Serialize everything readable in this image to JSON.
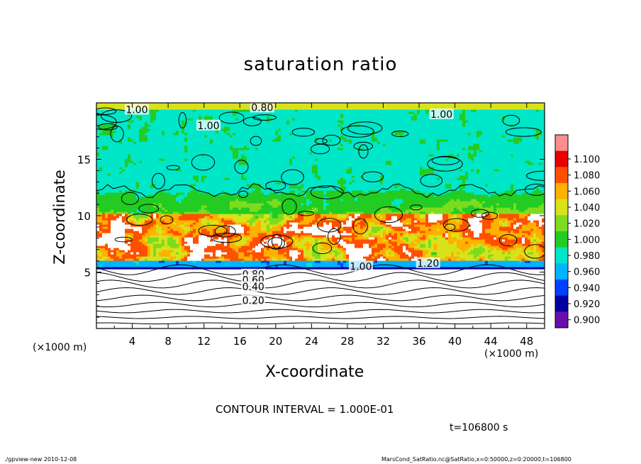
{
  "chart_data": {
    "type": "heatmap",
    "title": "saturation ratio",
    "xlabel": "X-coordinate",
    "ylabel": "Z-coordinate",
    "x_unit": "(×1000 m)",
    "y_unit": "(×1000 m)",
    "xlim": [
      0,
      50
    ],
    "ylim": [
      0,
      20
    ],
    "x_ticks": [
      4,
      8,
      12,
      16,
      20,
      24,
      28,
      32,
      36,
      40,
      44,
      48
    ],
    "y_ticks": [
      5,
      10,
      15
    ],
    "colorbar": {
      "levels": [
        0.9,
        0.92,
        0.94,
        0.96,
        0.98,
        1.0,
        1.02,
        1.04,
        1.06,
        1.08,
        1.1
      ],
      "labels": [
        "0.900",
        "0.920",
        "0.940",
        "0.960",
        "0.980",
        "1.000",
        "1.020",
        "1.040",
        "1.060",
        "1.080",
        "1.100"
      ],
      "colors": [
        "#6a0dad",
        "#0000a0",
        "#0040ff",
        "#00b4ff",
        "#00e6c8",
        "#22cc22",
        "#7ddc1f",
        "#d8e21a",
        "#ffb000",
        "#ff5000",
        "#e80000",
        "#ff8c8c"
      ]
    },
    "contour_labels": [
      {
        "text": "1.00",
        "x": 4.5,
        "z": 19.4
      },
      {
        "text": "1.00",
        "x": 12.5,
        "z": 18.0
      },
      {
        "text": "0.80",
        "x": 18.5,
        "z": 19.6
      },
      {
        "text": "1.00",
        "x": 38.5,
        "z": 19.0
      },
      {
        "text": "1.00",
        "x": 29.5,
        "z": 5.5
      },
      {
        "text": "1.20",
        "x": 37.0,
        "z": 5.8
      },
      {
        "text": "0.80",
        "x": 17.5,
        "z": 4.8
      },
      {
        "text": "0.60",
        "x": 17.5,
        "z": 4.3
      },
      {
        "text": "0.40",
        "x": 17.5,
        "z": 3.7
      },
      {
        "text": "0.20",
        "x": 17.5,
        "z": 2.5
      }
    ],
    "contour_interval_text": "CONTOUR INTERVAL = 1.000E-01",
    "time_text": "t=106800 s"
  },
  "footer": {
    "left": "./gpview-new   2010-12-08",
    "right": "MarsCond_SatRatio.nc@SatRatio,x=0:50000,z=0:20000,t=106800"
  }
}
